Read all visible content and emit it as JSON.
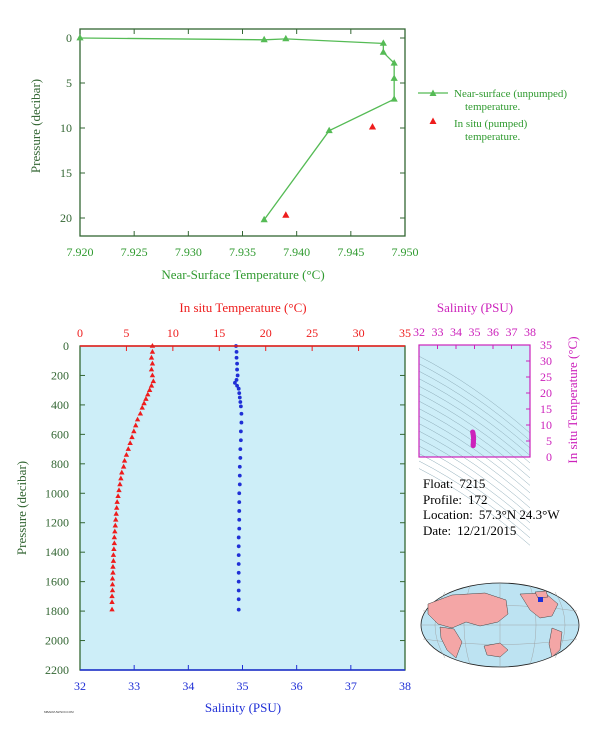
{
  "colors": {
    "green": "#55bb55",
    "green_text": "#2f9a2f",
    "dark_green": "#336633",
    "red": "#ee1c1c",
    "blue": "#1f2fd6",
    "magenta": "#cc22bb",
    "panel_bg": "#cdeef8",
    "map_land": "#f4a6a6",
    "map_ocean": "#bde3f2"
  },
  "chart_data": [
    {
      "type": "line",
      "xlabel": "Near-Surface Temperature (°C)",
      "ylabel": "Pressure (decibar)",
      "xlim": [
        7.92,
        7.95
      ],
      "ylim": [
        22,
        -1
      ],
      "x_ticks": [
        "7.920",
        "7.925",
        "7.930",
        "7.935",
        "7.940",
        "7.945",
        "7.950"
      ],
      "y_ticks": [
        "0",
        "5",
        "10",
        "15",
        "20"
      ],
      "series": [
        {
          "name": "Near-surface (unpumped) temperature.",
          "marker": "triangle-line",
          "color": "#55bb55",
          "points": [
            [
              7.92,
              0.0
            ],
            [
              7.937,
              0.2
            ],
            [
              7.939,
              0.1
            ],
            [
              7.948,
              0.6
            ],
            [
              7.948,
              1.6
            ],
            [
              7.949,
              2.8
            ],
            [
              7.949,
              4.5
            ],
            [
              7.949,
              6.8
            ],
            [
              7.943,
              10.3
            ],
            [
              7.937,
              20.2
            ]
          ]
        },
        {
          "name": "In situ (pumped) temperature.",
          "marker": "triangle",
          "color": "#ee1c1c",
          "points": [
            [
              7.947,
              9.9
            ],
            [
              7.939,
              19.7
            ]
          ]
        }
      ]
    },
    {
      "type": "scatter",
      "ylabel": "Pressure (decibar)",
      "top_axis": {
        "label": "In situ Temperature (°C)",
        "range": [
          0,
          35
        ],
        "ticks": [
          "0",
          "5",
          "10",
          "15",
          "20",
          "25",
          "30",
          "35"
        ]
      },
      "bottom_axis": {
        "label": "Salinity (PSU)",
        "range": [
          32,
          38
        ],
        "ticks": [
          "32",
          "33",
          "34",
          "35",
          "36",
          "37",
          "38"
        ]
      },
      "ylim": [
        2200,
        0
      ],
      "y_ticks": [
        "0",
        "200",
        "400",
        "600",
        "800",
        "1000",
        "1200",
        "1400",
        "1600",
        "1800",
        "2000",
        "2200"
      ],
      "temperature_profile": {
        "color": "#ee1c1c",
        "points": [
          [
            7.8,
            0
          ],
          [
            7.8,
            40
          ],
          [
            7.7,
            80
          ],
          [
            7.8,
            120
          ],
          [
            7.7,
            160
          ],
          [
            7.8,
            200
          ],
          [
            7.9,
            240
          ],
          [
            7.7,
            270
          ],
          [
            7.5,
            300
          ],
          [
            7.3,
            330
          ],
          [
            7.1,
            360
          ],
          [
            6.9,
            390
          ],
          [
            6.7,
            420
          ],
          [
            6.5,
            460
          ],
          [
            6.2,
            500
          ],
          [
            6.0,
            540
          ],
          [
            5.8,
            580
          ],
          [
            5.6,
            620
          ],
          [
            5.4,
            660
          ],
          [
            5.2,
            700
          ],
          [
            5.0,
            740
          ],
          [
            4.8,
            780
          ],
          [
            4.7,
            820
          ],
          [
            4.5,
            860
          ],
          [
            4.4,
            900
          ],
          [
            4.3,
            940
          ],
          [
            4.2,
            980
          ],
          [
            4.1,
            1020
          ],
          [
            4.0,
            1060
          ],
          [
            3.95,
            1100
          ],
          [
            3.9,
            1140
          ],
          [
            3.85,
            1180
          ],
          [
            3.8,
            1220
          ],
          [
            3.75,
            1260
          ],
          [
            3.7,
            1300
          ],
          [
            3.7,
            1340
          ],
          [
            3.65,
            1380
          ],
          [
            3.6,
            1420
          ],
          [
            3.6,
            1460
          ],
          [
            3.55,
            1500
          ],
          [
            3.55,
            1540
          ],
          [
            3.5,
            1580
          ],
          [
            3.5,
            1620
          ],
          [
            3.5,
            1660
          ],
          [
            3.45,
            1700
          ],
          [
            3.45,
            1740
          ],
          [
            3.45,
            1790
          ]
        ]
      },
      "salinity_profile": {
        "color": "#1f2fd6",
        "points": [
          [
            34.88,
            0
          ],
          [
            34.89,
            40
          ],
          [
            34.89,
            80
          ],
          [
            34.9,
            120
          ],
          [
            34.9,
            160
          ],
          [
            34.91,
            200
          ],
          [
            34.89,
            230
          ],
          [
            34.86,
            250
          ],
          [
            34.9,
            270
          ],
          [
            34.93,
            290
          ],
          [
            34.94,
            320
          ],
          [
            34.95,
            350
          ],
          [
            34.96,
            380
          ],
          [
            34.97,
            410
          ],
          [
            34.98,
            460
          ],
          [
            34.98,
            520
          ],
          [
            34.97,
            580
          ],
          [
            34.97,
            640
          ],
          [
            34.96,
            700
          ],
          [
            34.96,
            760
          ],
          [
            34.95,
            820
          ],
          [
            34.95,
            880
          ],
          [
            34.95,
            940
          ],
          [
            34.94,
            1000
          ],
          [
            34.94,
            1060
          ],
          [
            34.94,
            1120
          ],
          [
            34.94,
            1180
          ],
          [
            34.94,
            1240
          ],
          [
            34.93,
            1300
          ],
          [
            34.93,
            1360
          ],
          [
            34.93,
            1420
          ],
          [
            34.93,
            1480
          ],
          [
            34.93,
            1540
          ],
          [
            34.93,
            1600
          ],
          [
            34.93,
            1660
          ],
          [
            34.93,
            1720
          ],
          [
            34.93,
            1790
          ]
        ]
      }
    },
    {
      "type": "scatter",
      "xlabel": "Salinity (PSU)",
      "ylabel": "In situ Temperature (°C)",
      "xlim": [
        32,
        38
      ],
      "ylim": [
        0,
        35
      ],
      "x_ticks": [
        "32",
        "33",
        "34",
        "35",
        "36",
        "37",
        "38"
      ],
      "y_ticks": [
        "0",
        "5",
        "10",
        "15",
        "20",
        "25",
        "30",
        "35"
      ],
      "color": "#cc22bb",
      "points": [
        [
          34.9,
          7.8
        ],
        [
          34.92,
          7.4
        ],
        [
          34.93,
          7.0
        ],
        [
          34.94,
          6.5
        ],
        [
          34.95,
          6.0
        ],
        [
          34.95,
          5.5
        ],
        [
          34.94,
          5.0
        ],
        [
          34.94,
          4.5
        ],
        [
          34.93,
          4.0
        ],
        [
          34.93,
          3.6
        ]
      ]
    }
  ],
  "profile_info": {
    "float_label": "Float:",
    "float_value": "7215",
    "profile_label": "Profile:",
    "profile_value": "172",
    "location_label": "Location:",
    "location_value": "57.3°N  24.3°W",
    "date_label": "Date:",
    "date_value": "12/21/2015"
  },
  "footnote": "MBARI/UW/SOCCOM"
}
